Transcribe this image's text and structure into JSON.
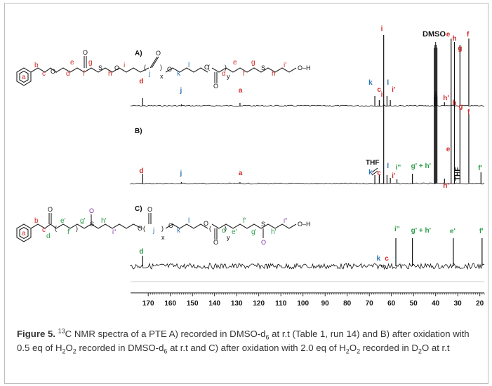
{
  "panels": {
    "A": "A)",
    "B": "B)",
    "C": "C)"
  },
  "solvent_labels": {
    "dmso": "DMSO",
    "thf_B_left": "THF",
    "thf_B_right": "THF"
  },
  "structure_A": {
    "ring": "a",
    "b": "b",
    "c": "c",
    "d": "d",
    "e": "e",
    "f": "f",
    "g": "g",
    "S": "S",
    "h": "h",
    "i": "i",
    "j": "j",
    "x": "x",
    "k": "k",
    "l": "l",
    "d2": "d",
    "y": "y",
    "e2": "e",
    "f2": "f",
    "g2": "g",
    "S2": "S",
    "h2": "h",
    "i2": "i'",
    "end": "O–H"
  },
  "structure_C": {
    "ring": "a",
    "b": "b",
    "c": "c",
    "d": "d",
    "e": "e'",
    "f": "f'",
    "g": "g'",
    "S": "S",
    "h": "h'",
    "i": "i''",
    "j": "j",
    "x": "x",
    "k": "k",
    "l": "l",
    "d2": "d",
    "y": "y",
    "e2": "e'",
    "f2": "f'",
    "g2": "g'",
    "S2": "S",
    "h2": "h'",
    "i2": "i''",
    "end": "O–H"
  },
  "spectrum_A_peaks": [
    {
      "label": "d",
      "ppm": 172.5,
      "color": "#d22b2b"
    },
    {
      "label": "j",
      "ppm": 155.0,
      "color": "#2e75b6"
    },
    {
      "label": "a",
      "ppm": 128.5,
      "color": "#d22b2b"
    },
    {
      "label": "k",
      "ppm": 67.5,
      "color": "#2e75b6"
    },
    {
      "label": "c",
      "ppm": 65.5,
      "color": "#d22b2b"
    },
    {
      "label": "i",
      "ppm": 63.5,
      "color": "#d22b2b"
    },
    {
      "label": "l",
      "ppm": 62.0,
      "color": "#2e75b6"
    },
    {
      "label": "i'",
      "ppm": 60.5,
      "color": "#d22b2b"
    },
    {
      "label": "h'",
      "ppm": 36.0,
      "color": "#d22b2b"
    },
    {
      "label": "e",
      "ppm": 33.0,
      "color": "#d22b2b"
    },
    {
      "label": "h",
      "ppm": 31.5,
      "color": "#d22b2b"
    },
    {
      "label": "g",
      "ppm": 29.0,
      "color": "#d22b2b"
    },
    {
      "label": "f",
      "ppm": 25.0,
      "color": "#d22b2b"
    }
  ],
  "spectrum_B_peaks": [
    {
      "label": "d",
      "ppm": 172.5,
      "color": "#d22b2b"
    },
    {
      "label": "j",
      "ppm": 155.0,
      "color": "#2e75b6"
    },
    {
      "label": "a",
      "ppm": 128.5,
      "color": "#d22b2b"
    },
    {
      "label": "k",
      "ppm": 67.5,
      "color": "#2e75b6"
    },
    {
      "label": "c",
      "ppm": 65.5,
      "color": "#d22b2b"
    },
    {
      "label": "i",
      "ppm": 63.5,
      "color": "#d22b2b"
    },
    {
      "label": "l",
      "ppm": 62.0,
      "color": "#2e75b6"
    },
    {
      "label": "i'",
      "ppm": 60.5,
      "color": "#d22b2b"
    },
    {
      "label": "i''",
      "ppm": 57.5,
      "color": "#2e9e4a"
    },
    {
      "label": "g' + h'",
      "ppm": 50.5,
      "color": "#2e9e4a"
    },
    {
      "label": "h'",
      "ppm": 36.0,
      "color": "#d22b2b"
    },
    {
      "label": "e",
      "ppm": 33.0,
      "color": "#d22b2b"
    },
    {
      "label": "h",
      "ppm": 31.5,
      "color": "#d22b2b"
    },
    {
      "label": "g",
      "ppm": 29.0,
      "color": "#d22b2b"
    },
    {
      "label": "f",
      "ppm": 25.0,
      "color": "#d22b2b"
    },
    {
      "label": "f'",
      "ppm": 19.5,
      "color": "#2e9e4a"
    }
  ],
  "spectrum_C_peaks": [
    {
      "label": "d",
      "ppm": 172.5,
      "color": "#2e9e4a"
    },
    {
      "label": "k",
      "ppm": 64.5,
      "color": "#2e75b6"
    },
    {
      "label": "c",
      "ppm": 63.0,
      "color": "#d22b2b"
    },
    {
      "label": "i''",
      "ppm": 58.0,
      "color": "#2e9e4a"
    },
    {
      "label": "g' + h'",
      "ppm": 50.5,
      "color": "#2e9e4a"
    },
    {
      "label": "e'",
      "ppm": 32.0,
      "color": "#2e9e4a"
    },
    {
      "label": "f'",
      "ppm": 19.0,
      "color": "#2e9e4a"
    }
  ],
  "x_axis": {
    "ticks": [
      "170",
      "160",
      "150",
      "140",
      "130",
      "120",
      "110",
      "100",
      "90",
      "80",
      "70",
      "60",
      "50",
      "40",
      "30",
      "20"
    ],
    "min": 18,
    "max": 178,
    "reversed": true
  },
  "caption": {
    "label": "Figure 5.",
    "sup13": "13",
    "t1": "C NMR spectra of a PTE A) recorded in DMSO-d",
    "sub6a": "6",
    "t2": " at r.t (Table 1, run 14) and B) after oxidation with 0.5 eq of H",
    "sub2a": "2",
    "t3": "O",
    "sub2b": "2",
    "t4": " recorded in DMSO-d",
    "sub6b": "6",
    "t5": " at r.t and C) after oxidation with 2.0 eq of H",
    "sub2c": "2",
    "t6": "O",
    "sub2d": "2",
    "t7": " recorded in D",
    "sub2e": "2",
    "t8": "O at r.t"
  }
}
